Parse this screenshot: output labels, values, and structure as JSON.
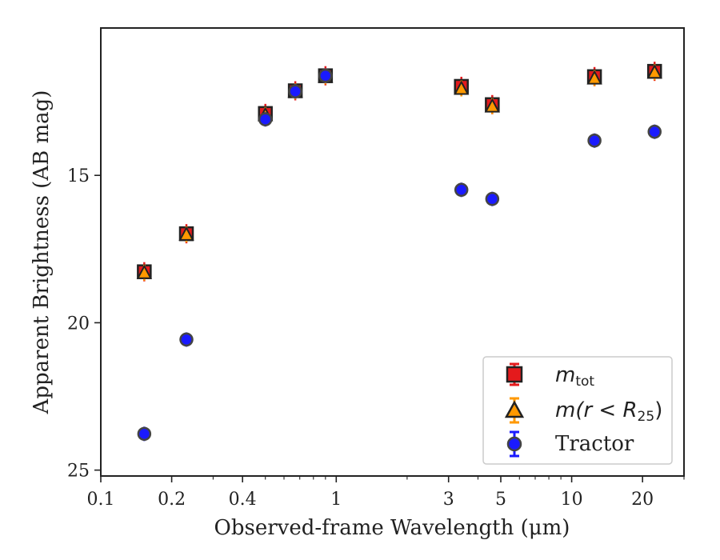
{
  "chart_data": {
    "type": "scatter",
    "xlabel": "Observed-frame Wavelength (μm)",
    "ylabel": "Apparent Brightness (AB mag)",
    "x_scale": "log",
    "y_inverted": true,
    "xlim": [
      0.1,
      30
    ],
    "ylim": [
      25.2,
      10
    ],
    "x_ticks": [
      0.1,
      0.2,
      0.4,
      1,
      3,
      5,
      10,
      20
    ],
    "x_tick_labels": [
      "0.1",
      "0.2",
      "0.4",
      "1",
      "3",
      "5",
      "10",
      "20"
    ],
    "y_ticks": [
      15,
      20,
      25
    ],
    "y_tick_labels": [
      "15",
      "20",
      "25"
    ],
    "grid": false,
    "legend_position": "bottom-right",
    "series": [
      {
        "name": "m_tot",
        "marker": "square",
        "color": "#e41a1c",
        "x": [
          0.153,
          0.231,
          0.5,
          0.67,
          0.9,
          3.4,
          4.6,
          12.5,
          22.5
        ],
        "y": [
          18.27,
          16.98,
          12.9,
          12.13,
          11.62,
          11.98,
          12.6,
          11.65,
          11.47
        ]
      },
      {
        "name": "m(r<R25)",
        "marker": "triangle",
        "color": "#ff9900",
        "x": [
          0.153,
          0.231,
          0.5,
          0.67,
          0.9,
          3.4,
          4.6,
          12.5,
          22.5
        ],
        "y": [
          18.3,
          17.0,
          12.95,
          12.15,
          11.64,
          12.05,
          12.65,
          11.7,
          11.5
        ]
      },
      {
        "name": "Tractor",
        "marker": "circle",
        "color": "#1a1aff",
        "x": [
          0.153,
          0.231,
          0.5,
          0.67,
          0.9,
          3.4,
          4.6,
          12.5,
          22.5
        ],
        "y": [
          23.77,
          20.57,
          13.1,
          12.15,
          11.62,
          15.49,
          15.8,
          13.82,
          13.52
        ]
      }
    ],
    "legend": {
      "tot_base": "m",
      "tot_sub": "tot",
      "r25_prefix": "m(r < R",
      "r25_sub": "25",
      "r25_suffix": ")",
      "tractor": "Tractor"
    }
  }
}
